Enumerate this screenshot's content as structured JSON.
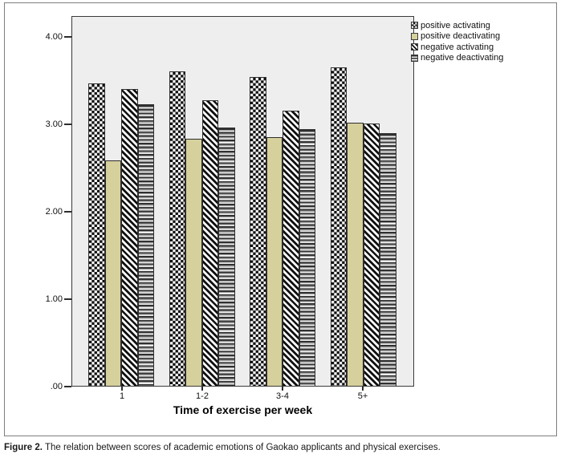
{
  "figure": {
    "caption_label": "Figure 2.",
    "caption_text": "The relation between scores of academic emotions of Gaokao applicants and physical exercises."
  },
  "chart_data": {
    "type": "bar",
    "title": "",
    "xlabel": "Time of exercise per week",
    "ylabel": "",
    "categories": [
      "1",
      "1-2",
      "3-4",
      "5+"
    ],
    "series": [
      {
        "name": "positive activating",
        "pattern": "checkerboard",
        "values": [
          3.46,
          3.6,
          3.53,
          3.64
        ]
      },
      {
        "name": "positive deactivating",
        "pattern": "solid",
        "color": "#d6d09c",
        "values": [
          2.58,
          2.83,
          2.85,
          3.01
        ]
      },
      {
        "name": "negative activating",
        "pattern": "diagonal-stripes",
        "values": [
          3.4,
          3.27,
          3.15,
          3.0
        ]
      },
      {
        "name": "negative deactivating",
        "pattern": "horizontal-stripes",
        "values": [
          3.22,
          2.96,
          2.94,
          2.89
        ]
      }
    ],
    "ylim": [
      0,
      4.24
    ],
    "yticks": [
      {
        "value": 0,
        "label": ".00"
      },
      {
        "value": 1,
        "label": "1.00"
      },
      {
        "value": 2,
        "label": "2.00"
      },
      {
        "value": 3,
        "label": "3.00"
      },
      {
        "value": 4,
        "label": "4.00"
      }
    ],
    "legend_position": "top-right-outside",
    "grid": false,
    "plot_background": "#eeeeee"
  }
}
